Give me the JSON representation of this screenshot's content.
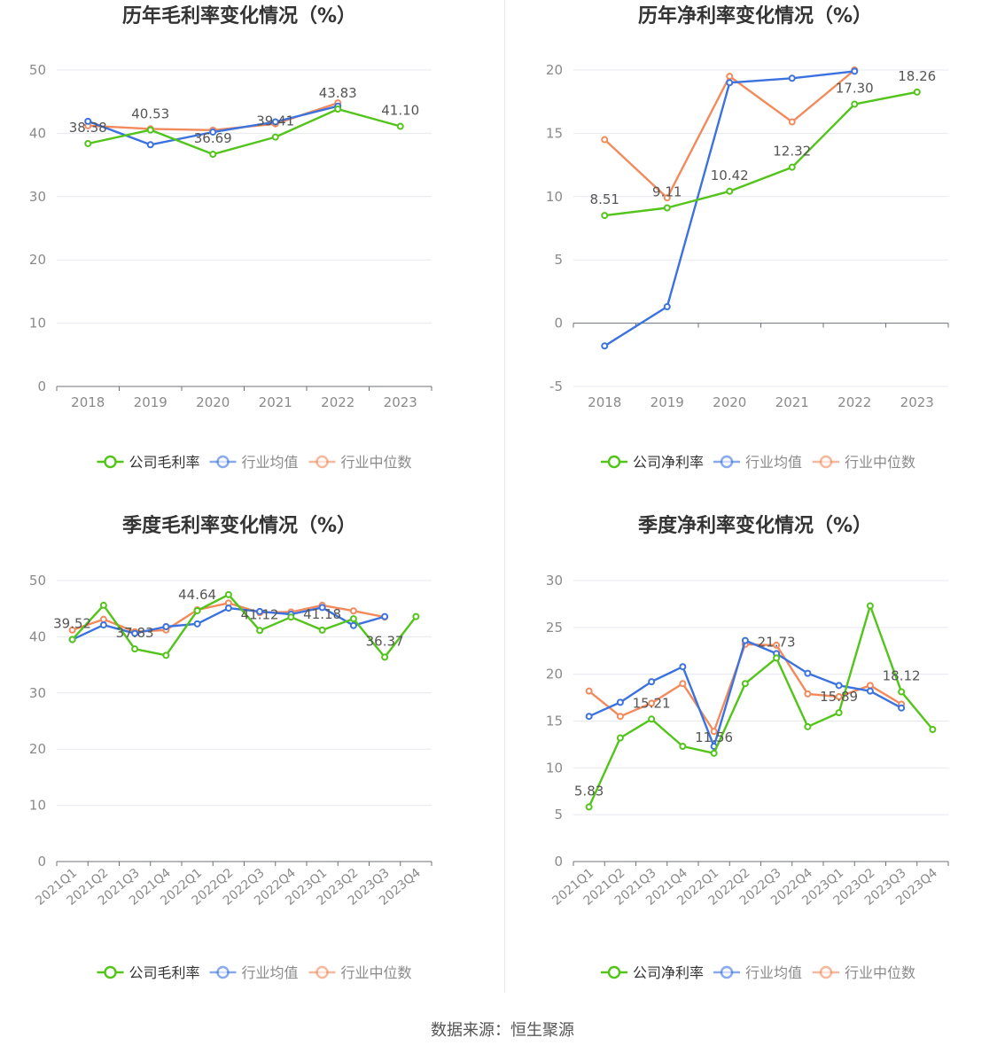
{
  "source_label": "数据来源：恒生聚源",
  "colors": {
    "company": "#52c41a",
    "avg": "#3b72e0",
    "median": "#f28a5c"
  },
  "chart_data": [
    {
      "type": "line",
      "title": "历年毛利率变化情况（%）",
      "categories": [
        "2018",
        "2019",
        "2020",
        "2021",
        "2022",
        "2023"
      ],
      "ylim": [
        0,
        50
      ],
      "yticks": [
        0,
        10,
        20,
        30,
        40,
        50
      ],
      "series": [
        {
          "name": "公司毛利率",
          "key": "company",
          "values": [
            38.38,
            40.53,
            36.69,
            39.41,
            43.83,
            41.1
          ]
        },
        {
          "name": "行业均值",
          "key": "avg",
          "values": [
            41.9,
            38.2,
            40.2,
            41.8,
            44.3,
            null
          ]
        },
        {
          "name": "行业中位数",
          "key": "median",
          "values": [
            41.2,
            40.7,
            40.5,
            41.5,
            44.8,
            null
          ]
        }
      ],
      "data_labels": [
        "38.38",
        "40.53",
        "36.69",
        "39.41",
        "43.83",
        "41.10"
      ]
    },
    {
      "type": "line",
      "title": "历年净利率变化情况（%）",
      "categories": [
        "2018",
        "2019",
        "2020",
        "2021",
        "2022",
        "2023"
      ],
      "ylim": [
        -5,
        20
      ],
      "yticks": [
        -5,
        0,
        5,
        10,
        15,
        20
      ],
      "series": [
        {
          "name": "公司净利率",
          "key": "company",
          "values": [
            8.51,
            9.11,
            10.42,
            12.32,
            17.3,
            18.26
          ]
        },
        {
          "name": "行业均值",
          "key": "avg",
          "values": [
            -1.8,
            1.3,
            19.0,
            19.35,
            19.9,
            null
          ]
        },
        {
          "name": "行业中位数",
          "key": "median",
          "values": [
            14.5,
            9.9,
            19.5,
            15.9,
            20.0,
            null
          ]
        }
      ],
      "data_labels": [
        "8.51",
        "9.11",
        "10.42",
        "12.32",
        "17.30",
        "18.26"
      ]
    },
    {
      "type": "line",
      "title": "季度毛利率变化情况（%）",
      "categories": [
        "2021Q1",
        "2021Q2",
        "2021Q3",
        "2021Q4",
        "2022Q1",
        "2022Q2",
        "2022Q3",
        "2022Q4",
        "2023Q1",
        "2023Q2",
        "2023Q3",
        "2023Q4"
      ],
      "ylim": [
        0,
        50
      ],
      "yticks": [
        0,
        10,
        20,
        30,
        40,
        50
      ],
      "series": [
        {
          "name": "公司毛利率",
          "key": "company",
          "values": [
            39.52,
            45.6,
            37.83,
            36.7,
            44.64,
            47.5,
            41.12,
            43.5,
            41.18,
            43.2,
            36.37,
            43.6
          ]
        },
        {
          "name": "行业均值",
          "key": "avg",
          "values": [
            39.5,
            42.1,
            40.6,
            41.8,
            42.3,
            45.1,
            44.5,
            44.0,
            45.2,
            42.0,
            43.6,
            null
          ]
        },
        {
          "name": "行业中位数",
          "key": "median",
          "values": [
            41.2,
            43.1,
            40.9,
            41.2,
            44.8,
            46.0,
            44.3,
            44.4,
            45.6,
            44.6,
            43.5,
            null
          ]
        }
      ],
      "data_labels": [
        "39.52",
        null,
        "37.83",
        null,
        "44.64",
        null,
        "41.12",
        null,
        "41.18",
        null,
        "36.37",
        null
      ]
    },
    {
      "type": "line",
      "title": "季度净利率变化情况（%）",
      "categories": [
        "2021Q1",
        "2021Q2",
        "2021Q3",
        "2021Q4",
        "2022Q1",
        "2022Q2",
        "2022Q3",
        "2022Q4",
        "2023Q1",
        "2023Q2",
        "2023Q3",
        "2023Q4"
      ],
      "ylim": [
        0,
        30
      ],
      "yticks": [
        0,
        5,
        10,
        15,
        20,
        25,
        30
      ],
      "series": [
        {
          "name": "公司净利率",
          "key": "company",
          "values": [
            5.83,
            13.2,
            15.21,
            12.3,
            11.56,
            19.0,
            21.73,
            14.4,
            15.89,
            27.3,
            18.12,
            14.1
          ]
        },
        {
          "name": "行业均值",
          "key": "avg",
          "values": [
            15.5,
            17.0,
            19.2,
            20.8,
            12.3,
            23.6,
            22.2,
            20.1,
            18.8,
            18.2,
            16.4,
            null
          ]
        },
        {
          "name": "行业中位数",
          "key": "median",
          "values": [
            18.2,
            15.5,
            16.9,
            19.0,
            13.9,
            23.2,
            23.1,
            17.9,
            17.6,
            18.8,
            16.8,
            null
          ]
        }
      ],
      "data_labels": [
        "5.83",
        null,
        "15.21",
        null,
        "11.56",
        null,
        "21.73",
        null,
        "15.89",
        null,
        "18.12",
        null
      ]
    }
  ]
}
